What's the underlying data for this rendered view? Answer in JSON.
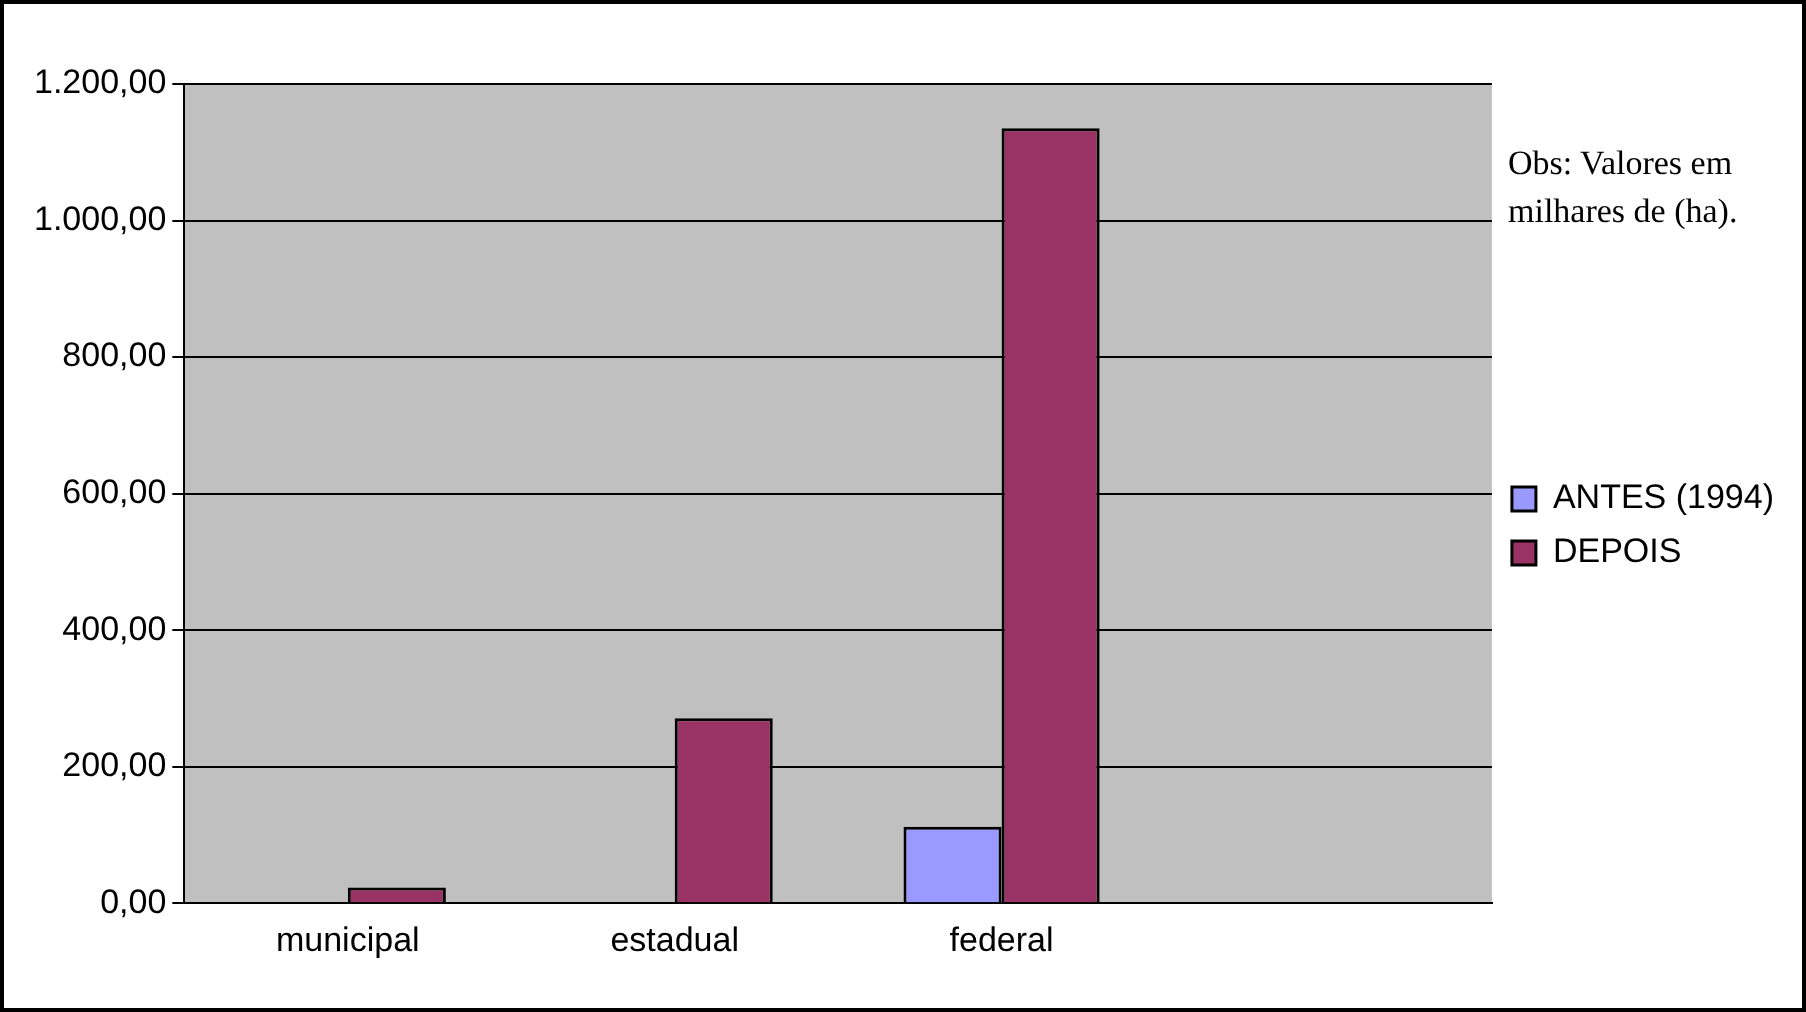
{
  "chart_data": {
    "type": "bar",
    "categories": [
      "municipal",
      "estadual",
      "federal",
      null
    ],
    "series": [
      {
        "name": "ANTES (1994)",
        "color": "#9999ff",
        "values": [
          0,
          0,
          112,
          null
        ]
      },
      {
        "name": "DEPOIS",
        "color": "#993366",
        "values": [
          23,
          271,
          1135,
          null
        ]
      }
    ],
    "ylim": [
      0,
      1200
    ],
    "yticks": [
      {
        "value": 0,
        "label": "0,00"
      },
      {
        "value": 200,
        "label": "200,00"
      },
      {
        "value": 400,
        "label": "400,00"
      },
      {
        "value": 600,
        "label": "600,00"
      },
      {
        "value": 800,
        "label": "800,00"
      },
      {
        "value": 1000,
        "label": "1.000,00"
      },
      {
        "value": 1200,
        "label": "1.200,00"
      }
    ],
    "grid": "y",
    "legend": "right",
    "annotations": [
      "Obs: Valores em milhares de (ha)."
    ]
  }
}
